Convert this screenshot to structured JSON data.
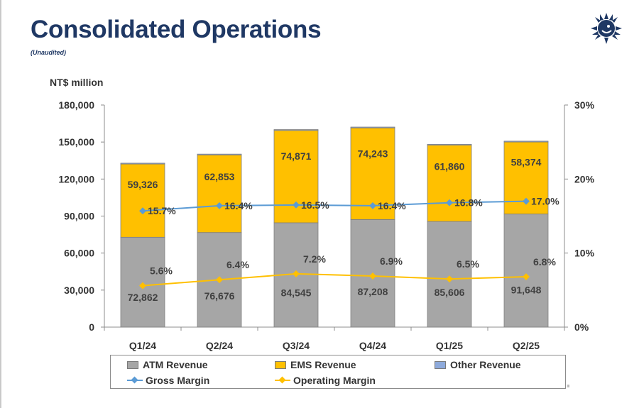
{
  "header": {
    "title": "Consolidated Operations",
    "subtitle": "(Unaudited)",
    "logo_icon": "sun-face-logo"
  },
  "chart_data": {
    "type": "bar",
    "stacked": true,
    "unit_label": "NT$ million",
    "categories": [
      "Q1/24",
      "Q2/24",
      "Q3/24",
      "Q4/24",
      "Q1/25",
      "Q2/25"
    ],
    "series": [
      {
        "name": "ATM Revenue",
        "color": "#a6a6a6",
        "values": [
          72862,
          76676,
          84545,
          87208,
          85606,
          91648
        ],
        "labels": [
          "72,862",
          "76,676",
          "84,545",
          "87,208",
          "85,606",
          "91,648"
        ]
      },
      {
        "name": "EMS Revenue",
        "color": "#ffc000",
        "values": [
          59326,
          62853,
          74871,
          74243,
          61860,
          58374
        ],
        "labels": [
          "59,326",
          "62,853",
          "74,871",
          "74,243",
          "61,860",
          "58,374"
        ]
      },
      {
        "name": "Other Revenue",
        "color": "#8eaadb",
        "values": [
          700,
          700,
          700,
          700,
          700,
          700
        ]
      }
    ],
    "lines": [
      {
        "name": "Gross Margin",
        "color": "#5b9bd5",
        "axis": "right",
        "values": [
          15.7,
          16.4,
          16.5,
          16.4,
          16.8,
          17.0
        ],
        "labels": [
          "15.7%",
          "16.4%",
          "16.5%",
          "16.4%",
          "16.8%",
          "17.0%"
        ]
      },
      {
        "name": "Operating Margin",
        "color": "#ffc000",
        "axis": "right",
        "values": [
          5.6,
          6.4,
          7.2,
          6.9,
          6.5,
          6.8
        ],
        "labels": [
          "5.6%",
          "6.4%",
          "7.2%",
          "6.9%",
          "6.5%",
          "6.8%"
        ]
      }
    ],
    "y_left": {
      "min": 0,
      "max": 180000,
      "ticks": [
        0,
        30000,
        60000,
        90000,
        120000,
        150000,
        180000
      ],
      "tick_labels": [
        "0",
        "30,000",
        "60,000",
        "90,000",
        "120,000",
        "150,000",
        "180,000"
      ]
    },
    "y_right": {
      "min": 0,
      "max": 30,
      "ticks": [
        0,
        10,
        20,
        30
      ],
      "tick_labels": [
        "0%",
        "10%",
        "20%",
        "30%"
      ]
    },
    "grid": false,
    "legend_position": "bottom"
  }
}
